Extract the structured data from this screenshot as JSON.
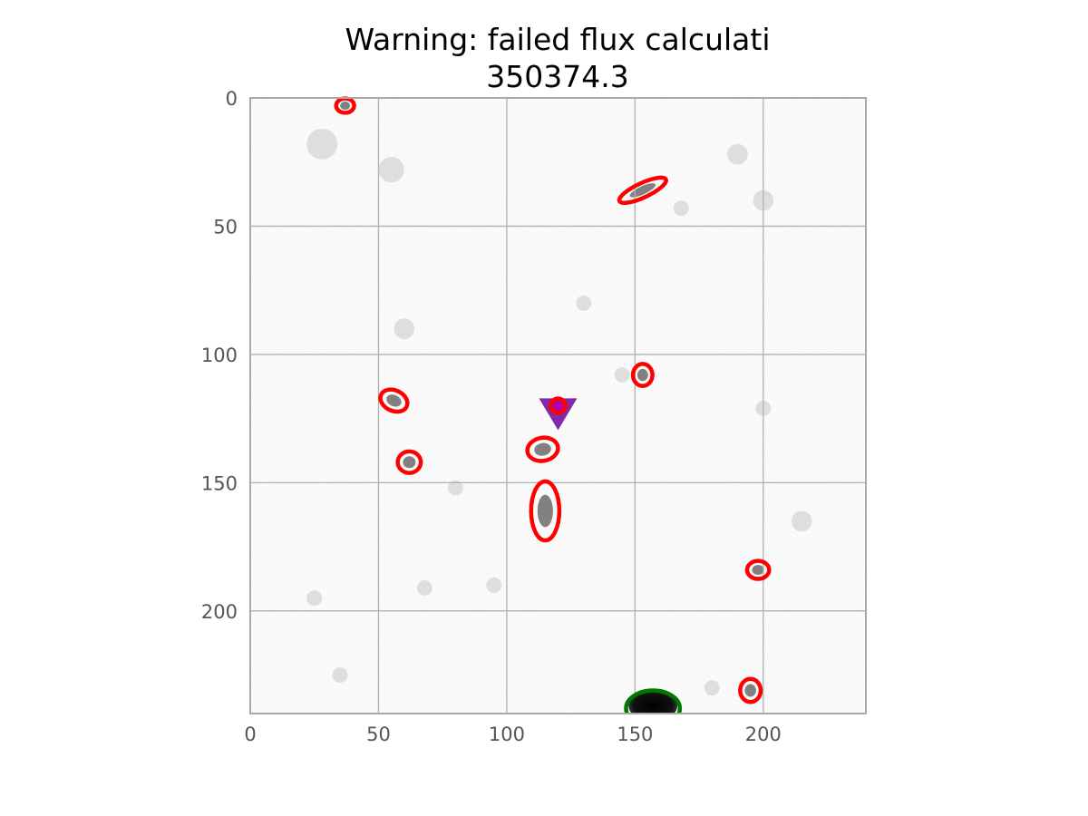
{
  "chart_data": {
    "type": "scatter",
    "title": "Warning: failed flux calculati",
    "subtitle": "350374.3",
    "xlabel": "",
    "ylabel": "",
    "xlim": [
      0,
      240
    ],
    "ylim": [
      240,
      0
    ],
    "y_inverted": true,
    "grid": true,
    "x_ticks": [
      "0",
      "50",
      "100",
      "150",
      "200"
    ],
    "y_ticks": [
      "0",
      "50",
      "100",
      "150",
      "200"
    ],
    "background": "grayscale astronomical image with noise",
    "detections": [
      {
        "x": 37,
        "y": 3,
        "a": 3.5,
        "b": 2.8,
        "angle": 0,
        "color": "#ff0000"
      },
      {
        "x": 153,
        "y": 36,
        "a": 10,
        "b": 2.8,
        "angle": -25,
        "color": "#ff0000"
      },
      {
        "x": 153,
        "y": 108,
        "a": 3.8,
        "b": 4.3,
        "angle": 0,
        "color": "#ff0000"
      },
      {
        "x": 56,
        "y": 118,
        "a": 5.5,
        "b": 4,
        "angle": 25,
        "color": "#ff0000"
      },
      {
        "x": 114,
        "y": 137,
        "a": 6,
        "b": 4.5,
        "angle": -10,
        "color": "#ff0000"
      },
      {
        "x": 62,
        "y": 142,
        "a": 4.5,
        "b": 4.2,
        "angle": 0,
        "color": "#ff0000"
      },
      {
        "x": 115,
        "y": 161,
        "a": 5.5,
        "b": 11.5,
        "angle": 0,
        "color": "#ff0000"
      },
      {
        "x": 198,
        "y": 184,
        "a": 4.3,
        "b": 3.5,
        "angle": 0,
        "color": "#ff0000"
      },
      {
        "x": 195,
        "y": 231,
        "a": 4,
        "b": 4.5,
        "angle": 0,
        "color": "#ff0000"
      }
    ],
    "bright_source": {
      "x": 157,
      "y": 237,
      "a": 9.5,
      "b": 6,
      "color": "#000000"
    },
    "bright_source_outline": {
      "x": 157,
      "y": 238,
      "a": 10.5,
      "b": 7,
      "color": "#007700"
    },
    "target_marker": {
      "x": 120,
      "y": 121,
      "shape": "triangle-down",
      "color": "#7a1fa2"
    },
    "target_point": {
      "x": 120,
      "y": 120,
      "color": "#b000b0"
    }
  }
}
